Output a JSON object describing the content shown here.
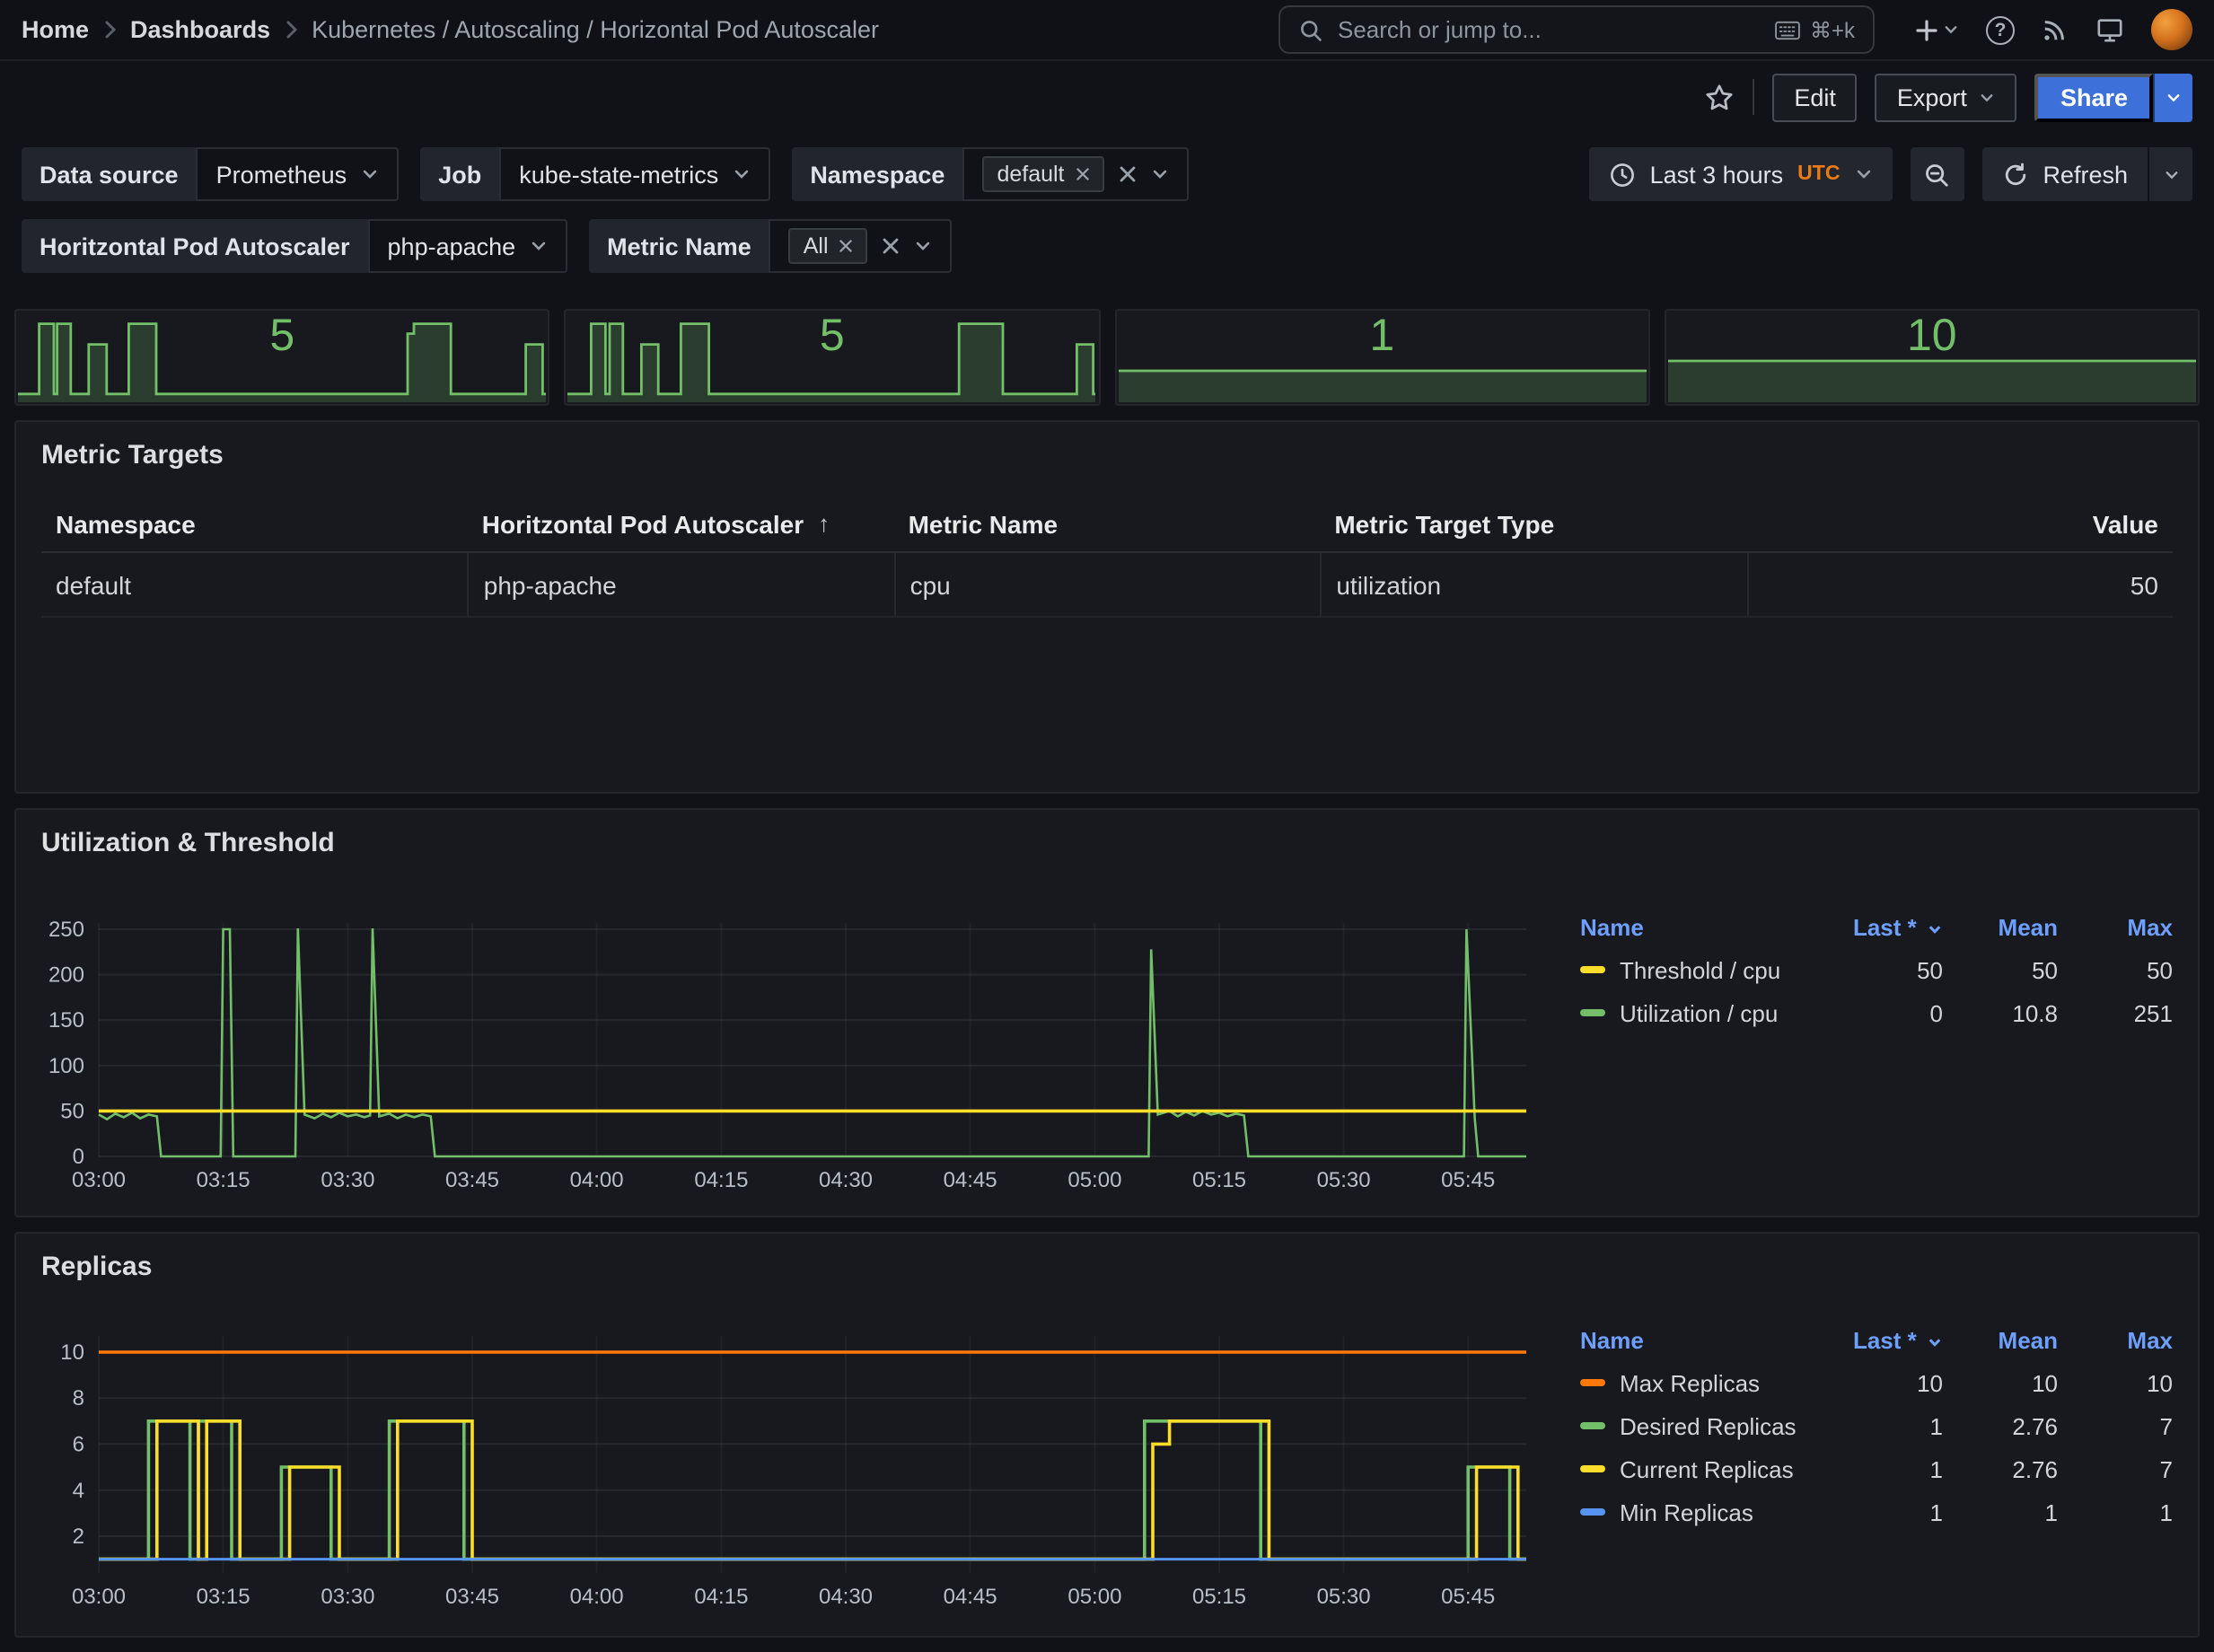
{
  "colors": {
    "green": "#73bf69",
    "green_fill": "rgba(115,191,105,0.22)",
    "yellow": "#fade2a",
    "orange": "#ff780a",
    "blue": "#5794f2",
    "accent_blue": "#3d71d9",
    "legend_header_blue": "#6e9fff",
    "utc_orange": "#eb7b18"
  },
  "nav": {
    "breadcrumbs": [
      "Home",
      "Dashboards",
      "Kubernetes / Autoscaling / Horizontal Pod Autoscaler"
    ],
    "search_placeholder": "Search or jump to...",
    "search_shortcut": "⌘+k"
  },
  "toolbar": {
    "edit": "Edit",
    "export": "Export",
    "share": "Share"
  },
  "filters": {
    "datasource_label": "Data source",
    "datasource_value": "Prometheus",
    "job_label": "Job",
    "job_value": "kube-state-metrics",
    "namespace_label": "Namespace",
    "namespace_tag": "default",
    "hpa_label": "Horitzontal Pod Autoscaler",
    "hpa_value": "php-apache",
    "metric_label": "Metric Name",
    "metric_tag": "All"
  },
  "timebar": {
    "range": "Last 3 hours",
    "tz": "UTC",
    "refresh": "Refresh"
  },
  "stats": [
    {
      "value": "5",
      "spark": [
        [
          0,
          0.9
        ],
        [
          0.04,
          0.9
        ],
        [
          0.04,
          0.05
        ],
        [
          0.068,
          0.05
        ],
        [
          0.068,
          0.9
        ],
        [
          0.074,
          0.9
        ],
        [
          0.074,
          0.05
        ],
        [
          0.1,
          0.05
        ],
        [
          0.1,
          0.9
        ],
        [
          0.134,
          0.9
        ],
        [
          0.134,
          0.3
        ],
        [
          0.168,
          0.3
        ],
        [
          0.168,
          0.9
        ],
        [
          0.21,
          0.9
        ],
        [
          0.21,
          0.05
        ],
        [
          0.262,
          0.05
        ],
        [
          0.262,
          0.9
        ],
        [
          0.738,
          0.9
        ],
        [
          0.738,
          0.17
        ],
        [
          0.75,
          0.17
        ],
        [
          0.75,
          0.05
        ],
        [
          0.82,
          0.05
        ],
        [
          0.82,
          0.9
        ],
        [
          0.962,
          0.9
        ],
        [
          0.962,
          0.3
        ],
        [
          0.994,
          0.3
        ],
        [
          0.994,
          0.9
        ],
        [
          1,
          0.9
        ]
      ]
    },
    {
      "value": "5",
      "spark": [
        [
          0,
          0.9
        ],
        [
          0.045,
          0.9
        ],
        [
          0.045,
          0.05
        ],
        [
          0.072,
          0.05
        ],
        [
          0.072,
          0.9
        ],
        [
          0.08,
          0.9
        ],
        [
          0.08,
          0.05
        ],
        [
          0.105,
          0.05
        ],
        [
          0.105,
          0.9
        ],
        [
          0.14,
          0.9
        ],
        [
          0.14,
          0.3
        ],
        [
          0.172,
          0.3
        ],
        [
          0.172,
          0.9
        ],
        [
          0.215,
          0.9
        ],
        [
          0.215,
          0.05
        ],
        [
          0.268,
          0.05
        ],
        [
          0.268,
          0.9
        ],
        [
          0.742,
          0.9
        ],
        [
          0.742,
          0.05
        ],
        [
          0.825,
          0.05
        ],
        [
          0.825,
          0.9
        ],
        [
          0.965,
          0.9
        ],
        [
          0.965,
          0.3
        ],
        [
          0.996,
          0.3
        ],
        [
          0.996,
          0.9
        ],
        [
          1,
          0.9
        ]
      ]
    },
    {
      "value": "1",
      "spark": [
        [
          0,
          0.62
        ],
        [
          1,
          0.62
        ]
      ]
    },
    {
      "value": "10",
      "spark": [
        [
          0,
          0.5
        ],
        [
          1,
          0.5
        ]
      ]
    }
  ],
  "metric_targets": {
    "title": "Metric Targets",
    "columns": [
      "Namespace",
      "Horitzontal Pod Autoscaler",
      "Metric Name",
      "Metric Target Type",
      "Value"
    ],
    "sort_column_index": 1,
    "sort_indicator": "↑",
    "rows": [
      [
        "default",
        "php-apache",
        "cpu",
        "utilization",
        "50"
      ]
    ]
  },
  "utilization_panel": {
    "title": "Utilization & Threshold",
    "legend": {
      "headers": [
        "Name",
        "Last *",
        "Mean",
        "Max"
      ],
      "rows": [
        {
          "color": "#fade2a",
          "name": "Threshold / cpu",
          "last": "50",
          "mean": "50",
          "max": "50"
        },
        {
          "color": "#73bf69",
          "name": "Utilization / cpu",
          "last": "0",
          "mean": "10.8",
          "max": "251"
        }
      ]
    },
    "chart": {
      "type": "line",
      "x_domain": [
        0,
        172
      ],
      "y_domain": [
        0,
        257
      ],
      "y_ticks": [
        0,
        50,
        100,
        150,
        200,
        250
      ],
      "x_ticks": [
        {
          "t": 0,
          "label": "03:00"
        },
        {
          "t": 15,
          "label": "03:15"
        },
        {
          "t": 30,
          "label": "03:30"
        },
        {
          "t": 45,
          "label": "03:45"
        },
        {
          "t": 60,
          "label": "04:00"
        },
        {
          "t": 75,
          "label": "04:15"
        },
        {
          "t": 90,
          "label": "04:30"
        },
        {
          "t": 105,
          "label": "04:45"
        },
        {
          "t": 120,
          "label": "05:00"
        },
        {
          "t": 135,
          "label": "05:15"
        },
        {
          "t": 150,
          "label": "05:30"
        },
        {
          "t": 165,
          "label": "05:45"
        }
      ],
      "series": [
        {
          "name": "Utilization / cpu",
          "color": "#73bf69",
          "width": 1.3,
          "points": [
            [
              0,
              46
            ],
            [
              1,
              41
            ],
            [
              2,
              47
            ],
            [
              3,
              43
            ],
            [
              4,
              48
            ],
            [
              5,
              42
            ],
            [
              6,
              46
            ],
            [
              7,
              44
            ],
            [
              7.5,
              0
            ],
            [
              14.7,
              0
            ],
            [
              15,
              250
            ],
            [
              15.8,
              250
            ],
            [
              16.2,
              0
            ],
            [
              23.7,
              0
            ],
            [
              24,
              251
            ],
            [
              24.8,
              46
            ],
            [
              26,
              42
            ],
            [
              27,
              47
            ],
            [
              28,
              43
            ],
            [
              29,
              48
            ],
            [
              30,
              44
            ],
            [
              31,
              46
            ],
            [
              32,
              43
            ],
            [
              32.7,
              45
            ],
            [
              33,
              251
            ],
            [
              33.8,
              44
            ],
            [
              35,
              47
            ],
            [
              36,
              42
            ],
            [
              37,
              46
            ],
            [
              38,
              43
            ],
            [
              39,
              46
            ],
            [
              40,
              44
            ],
            [
              40.5,
              0
            ],
            [
              126.5,
              0
            ],
            [
              126.8,
              228
            ],
            [
              127.6,
              46
            ],
            [
              129,
              50
            ],
            [
              130,
              44
            ],
            [
              131,
              49
            ],
            [
              132,
              45
            ],
            [
              133,
              50
            ],
            [
              134,
              46
            ],
            [
              135,
              48
            ],
            [
              136,
              44
            ],
            [
              137,
              47
            ],
            [
              138,
              45
            ],
            [
              138.5,
              0
            ],
            [
              164.5,
              0
            ],
            [
              164.8,
              250
            ],
            [
              165.8,
              42
            ],
            [
              166.2,
              0
            ],
            [
              172,
              0
            ]
          ]
        },
        {
          "name": "Threshold / cpu",
          "color": "#fade2a",
          "width": 1.8,
          "points": [
            [
              0,
              50
            ],
            [
              172,
              50
            ]
          ]
        }
      ]
    }
  },
  "replicas_panel": {
    "title": "Replicas",
    "legend": {
      "headers": [
        "Name",
        "Last *",
        "Mean",
        "Max"
      ],
      "rows": [
        {
          "color": "#ff780a",
          "name": "Max Replicas",
          "last": "10",
          "mean": "10",
          "max": "10"
        },
        {
          "color": "#73bf69",
          "name": "Desired Replicas",
          "last": "1",
          "mean": "2.76",
          "max": "7"
        },
        {
          "color": "#fade2a",
          "name": "Current Replicas",
          "last": "1",
          "mean": "2.76",
          "max": "7"
        },
        {
          "color": "#5794f2",
          "name": "Min Replicas",
          "last": "1",
          "mean": "1",
          "max": "1"
        }
      ]
    },
    "chart": {
      "type": "line",
      "x_domain": [
        0,
        172
      ],
      "y_domain": [
        0.4,
        10.7
      ],
      "y_ticks": [
        2,
        4,
        6,
        8,
        10
      ],
      "x_ticks": [
        {
          "t": 0,
          "label": "03:00"
        },
        {
          "t": 15,
          "label": "03:15"
        },
        {
          "t": 30,
          "label": "03:30"
        },
        {
          "t": 45,
          "label": "03:45"
        },
        {
          "t": 60,
          "label": "04:00"
        },
        {
          "t": 75,
          "label": "04:15"
        },
        {
          "t": 90,
          "label": "04:30"
        },
        {
          "t": 105,
          "label": "04:45"
        },
        {
          "t": 120,
          "label": "05:00"
        },
        {
          "t": 135,
          "label": "05:15"
        },
        {
          "t": 150,
          "label": "05:30"
        },
        {
          "t": 165,
          "label": "05:45"
        }
      ],
      "series": [
        {
          "name": "Max Replicas",
          "color": "#ff780a",
          "width": 1.8,
          "points": [
            [
              0,
              10
            ],
            [
              172,
              10
            ]
          ]
        },
        {
          "name": "Desired Replicas",
          "color": "#73bf69",
          "width": 1.8,
          "points": [
            [
              0,
              1
            ],
            [
              6,
              1
            ],
            [
              6,
              7
            ],
            [
              11,
              7
            ],
            [
              11,
              1
            ],
            [
              12,
              1
            ],
            [
              12,
              7
            ],
            [
              16,
              7
            ],
            [
              16,
              1
            ],
            [
              22,
              1
            ],
            [
              22,
              5
            ],
            [
              28,
              5
            ],
            [
              28,
              1
            ],
            [
              35,
              1
            ],
            [
              35,
              7
            ],
            [
              44,
              7
            ],
            [
              44,
              1
            ],
            [
              126,
              1
            ],
            [
              126,
              7
            ],
            [
              140,
              7
            ],
            [
              140,
              1
            ],
            [
              165,
              1
            ],
            [
              165,
              5
            ],
            [
              170,
              5
            ],
            [
              170,
              1
            ],
            [
              172,
              1
            ]
          ]
        },
        {
          "name": "Current Replicas",
          "color": "#fade2a",
          "width": 1.8,
          "points": [
            [
              0,
              1
            ],
            [
              7,
              1
            ],
            [
              7,
              7
            ],
            [
              12,
              7
            ],
            [
              12,
              1
            ],
            [
              13,
              1
            ],
            [
              13,
              7
            ],
            [
              17,
              7
            ],
            [
              17,
              1
            ],
            [
              23,
              1
            ],
            [
              23,
              5
            ],
            [
              29,
              5
            ],
            [
              29,
              1
            ],
            [
              36,
              1
            ],
            [
              36,
              7
            ],
            [
              45,
              7
            ],
            [
              45,
              1
            ],
            [
              127,
              1
            ],
            [
              127,
              6
            ],
            [
              129,
              6
            ],
            [
              129,
              7
            ],
            [
              141,
              7
            ],
            [
              141,
              1
            ],
            [
              166,
              1
            ],
            [
              166,
              5
            ],
            [
              171,
              5
            ],
            [
              171,
              1
            ],
            [
              172,
              1
            ]
          ]
        },
        {
          "name": "Min Replicas",
          "color": "#5794f2",
          "width": 1.5,
          "points": [
            [
              0,
              1
            ],
            [
              172,
              1
            ]
          ]
        }
      ]
    }
  }
}
